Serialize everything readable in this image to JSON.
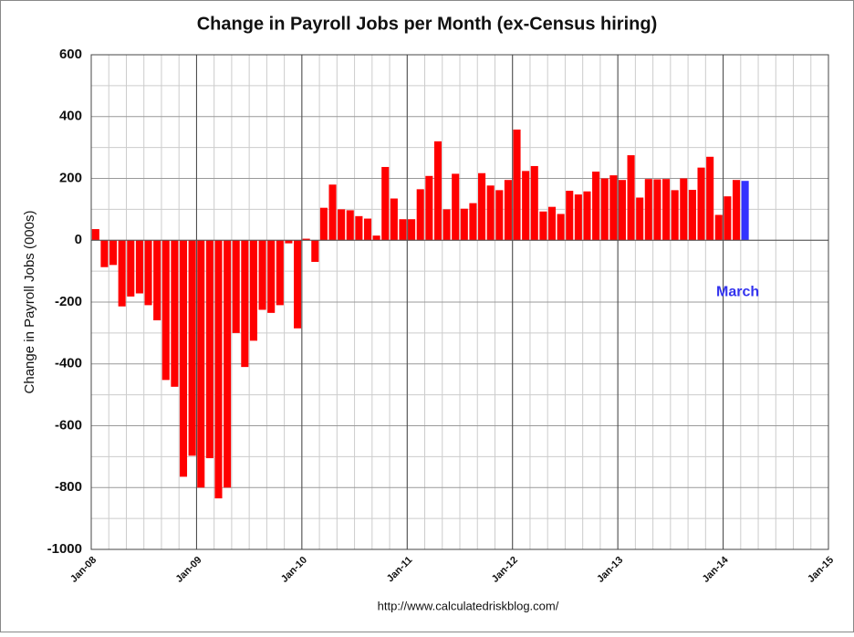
{
  "chart_data": {
    "type": "bar",
    "title": "Change in Payroll Jobs per Month (ex-Census hiring)",
    "ylabel": "Change in Payroll Jobs (000s)",
    "source": "http://www.calculatedriskblog.com/",
    "annotation": "March",
    "annotation_color": "#3333ee",
    "color": "#ff0000",
    "highlight_color": "#3333ff",
    "categories": [
      "Jan-08",
      null,
      null,
      null,
      null,
      null,
      null,
      null,
      null,
      null,
      null,
      null,
      "Jan-09",
      null,
      null,
      null,
      null,
      null,
      null,
      null,
      null,
      null,
      null,
      null,
      "Jan-10",
      null,
      null,
      null,
      null,
      null,
      null,
      null,
      null,
      null,
      null,
      null,
      "Jan-11",
      null,
      null,
      null,
      null,
      null,
      null,
      null,
      null,
      null,
      null,
      null,
      "Jan-12",
      null,
      null,
      null,
      null,
      null,
      null,
      null,
      null,
      null,
      null,
      null,
      "Jan-13",
      null,
      null,
      null,
      null,
      null,
      null,
      null,
      null,
      null,
      null,
      null,
      "Jan-14",
      null,
      null,
      null,
      null,
      null,
      null,
      null,
      null,
      null,
      null,
      null,
      "Jan-15"
    ],
    "values": [
      36,
      -87,
      -80,
      -214,
      -182,
      -172,
      -210,
      -259,
      -452,
      -474,
      -765,
      -697,
      -800,
      -705,
      -835,
      -800,
      -300,
      -410,
      -325,
      -225,
      -235,
      -210,
      -10,
      -285,
      5,
      -70,
      105,
      180,
      100,
      97,
      78,
      70,
      15,
      237,
      135,
      68,
      68,
      165,
      208,
      320,
      100,
      215,
      102,
      120,
      217,
      177,
      162,
      195,
      358,
      224,
      240,
      93,
      108,
      85,
      160,
      148,
      158,
      222,
      200,
      210,
      195,
      275,
      138,
      198,
      197,
      198,
      162,
      200,
      163,
      235,
      270,
      82,
      142,
      195,
      192,
      null,
      null,
      null,
      null,
      null,
      null,
      null,
      null,
      null,
      null
    ],
    "ylim": [
      -1000,
      600
    ],
    "yticks": [
      -1000,
      -800,
      -600,
      -400,
      -200,
      0,
      200,
      400,
      600
    ],
    "grid": true
  }
}
